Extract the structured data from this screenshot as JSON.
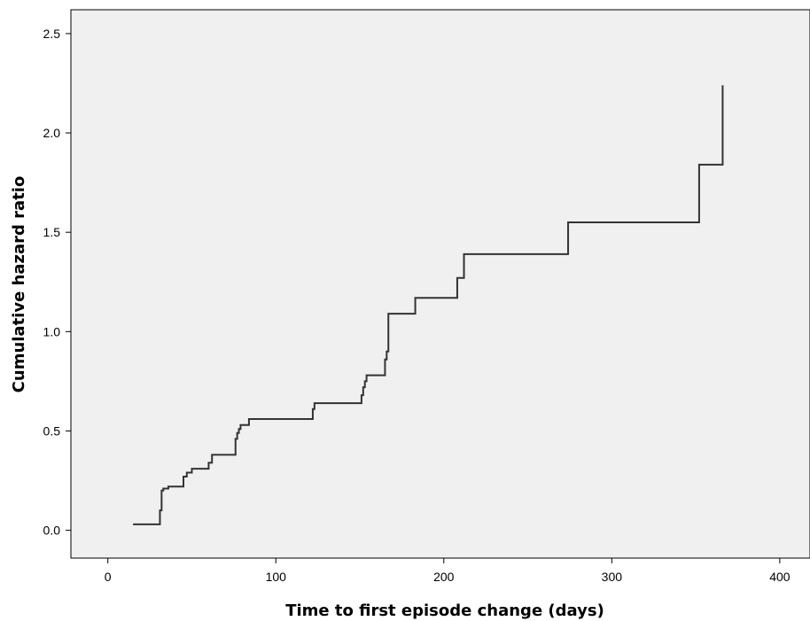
{
  "chart_data": {
    "type": "line",
    "step": true,
    "xlabel": "Time to first episode change (days)",
    "ylabel": "Cumulative hazard ratio",
    "xlim": [
      -22,
      418
    ],
    "ylim": [
      -0.14,
      2.62
    ],
    "xticks": [
      0,
      100,
      200,
      300,
      400
    ],
    "yticks": [
      0.0,
      0.5,
      1.0,
      1.5,
      2.0,
      2.5
    ],
    "xtick_labels": [
      "0",
      "100",
      "200",
      "300",
      "400"
    ],
    "ytick_labels": [
      "0.0",
      "0.5",
      "1.0",
      "1.5",
      "2.0",
      "2.5"
    ],
    "grid": false,
    "plot_background": "#f0f0f0",
    "line_color": "#333333",
    "series": [
      {
        "x": [
          15,
          31,
          32,
          33,
          36,
          45,
          47,
          50,
          60,
          62,
          76,
          77,
          78,
          79,
          84,
          122,
          123,
          151,
          152,
          153,
          154,
          165,
          166,
          167,
          183,
          208,
          212,
          274,
          352,
          366
        ],
        "y": [
          0.03,
          0.1,
          0.2,
          0.21,
          0.22,
          0.27,
          0.29,
          0.31,
          0.34,
          0.38,
          0.46,
          0.49,
          0.51,
          0.53,
          0.56,
          0.61,
          0.64,
          0.68,
          0.72,
          0.75,
          0.78,
          0.86,
          0.9,
          1.09,
          1.17,
          1.27,
          1.39,
          1.55,
          1.84,
          2.24
        ]
      }
    ]
  }
}
